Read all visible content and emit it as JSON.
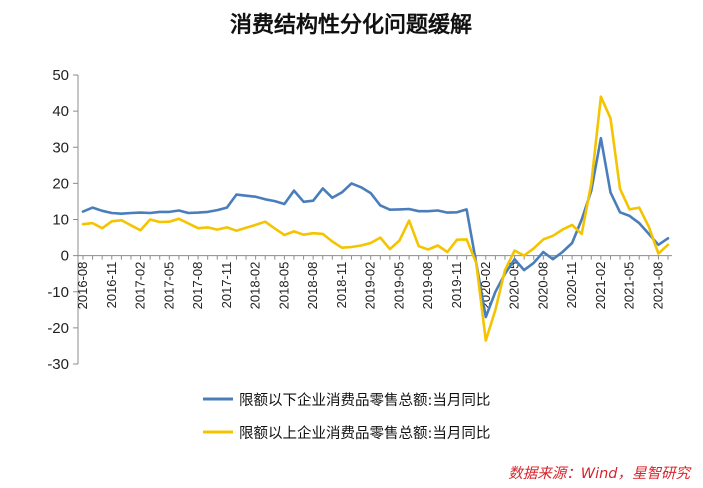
{
  "chart_data": {
    "type": "line",
    "title": "消费结构性分化问题缓解",
    "ylim": [
      -30,
      50
    ],
    "yticks": [
      -30,
      -20,
      -10,
      0,
      10,
      20,
      30,
      40,
      50
    ],
    "xtick_labels": [
      "2016-08",
      "2016-11",
      "2017-02",
      "2017-05",
      "2017-08",
      "2017-11",
      "2018-02",
      "2018-05",
      "2018-08",
      "2018-11",
      "2019-02",
      "2019-05",
      "2019-08",
      "2019-11",
      "2020-02",
      "2020-05",
      "2020-08",
      "2020-11",
      "2021-02",
      "2021-05",
      "2021-08"
    ],
    "x": [
      "2016-08",
      "2016-09",
      "2016-10",
      "2016-11",
      "2016-12",
      "2017-01",
      "2017-02",
      "2017-03",
      "2017-04",
      "2017-05",
      "2017-06",
      "2017-07",
      "2017-08",
      "2017-09",
      "2017-10",
      "2017-11",
      "2017-12",
      "2018-01",
      "2018-02",
      "2018-03",
      "2018-04",
      "2018-05",
      "2018-06",
      "2018-07",
      "2018-08",
      "2018-09",
      "2018-10",
      "2018-11",
      "2018-12",
      "2019-01",
      "2019-02",
      "2019-03",
      "2019-04",
      "2019-05",
      "2019-06",
      "2019-07",
      "2019-08",
      "2019-09",
      "2019-10",
      "2019-11",
      "2019-12",
      "2020-01",
      "2020-02",
      "2020-03",
      "2020-04",
      "2020-05",
      "2020-06",
      "2020-07",
      "2020-08",
      "2020-09",
      "2020-10",
      "2020-11",
      "2020-12",
      "2021-01",
      "2021-02",
      "2021-03",
      "2021-04",
      "2021-05",
      "2021-06",
      "2021-07",
      "2021-08",
      "2021-09"
    ],
    "grid": false,
    "legend_position": "bottom",
    "series": [
      {
        "name": "限额以下企业消费品零售总额:当月同比",
        "color": "#4a7ebb",
        "values": [
          12.2,
          13.3,
          12.4,
          11.8,
          11.6,
          11.8,
          11.9,
          11.8,
          12.1,
          12.1,
          12.5,
          11.8,
          11.9,
          12.1,
          12.6,
          13.3,
          16.9,
          16.6,
          16.3,
          15.6,
          15.1,
          14.3,
          18.0,
          14.9,
          15.2,
          18.6,
          16.0,
          17.5,
          20.0,
          18.9,
          17.3,
          13.9,
          12.7,
          12.8,
          12.9,
          12.3,
          12.3,
          12.5,
          11.9,
          12.0,
          12.8,
          -2.0,
          -17.0,
          -10.0,
          -5.0,
          -1.0,
          -4.0,
          -2.0,
          1.0,
          -1.0,
          1.0,
          3.5,
          10.0,
          18.0,
          32.5,
          17.5,
          12.0,
          11.0,
          9.0,
          6.0,
          3.0,
          4.8
        ]
      },
      {
        "name": "限额以上企业消费品零售总额:当月同比",
        "color": "#f5c400",
        "values": [
          8.7,
          9.0,
          7.6,
          9.5,
          9.8,
          8.4,
          7.0,
          10.0,
          9.3,
          9.4,
          10.2,
          8.9,
          7.6,
          7.8,
          7.2,
          7.8,
          6.9,
          7.7,
          8.5,
          9.4,
          7.5,
          5.7,
          6.7,
          5.8,
          6.2,
          6.0,
          3.9,
          2.2,
          2.4,
          2.8,
          3.5,
          5.0,
          1.8,
          4.2,
          9.7,
          2.6,
          1.7,
          2.8,
          1.0,
          4.4,
          4.5,
          -2.0,
          -23.5,
          -15.0,
          -4.0,
          1.4,
          0.0,
          2.0,
          4.5,
          5.5,
          7.2,
          8.5,
          6.0,
          20.0,
          44.0,
          38.0,
          18.5,
          12.8,
          13.3,
          8.0,
          0.6,
          3.0
        ]
      }
    ],
    "source": "数据来源：Wind，星智研究"
  }
}
